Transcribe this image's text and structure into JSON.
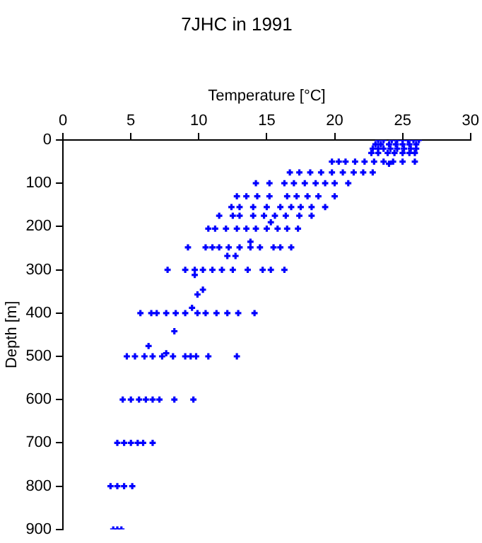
{
  "chart_data": {
    "type": "scatter",
    "title": "7JHC in 1991",
    "xlabel": "Temperature [°C]",
    "ylabel": "Depth [m]",
    "xlim": [
      0,
      30
    ],
    "xticks": [
      0,
      5,
      10,
      15,
      20,
      25,
      30
    ],
    "ylim": [
      900,
      0
    ],
    "yticks": [
      0,
      100,
      200,
      300,
      400,
      500,
      600,
      700,
      800,
      900
    ],
    "grid": false,
    "legend": false,
    "marker": "cross",
    "series": [
      {
        "color": "#0000ff",
        "x": [
          23.2,
          23.6,
          24.2,
          24.6,
          25.0,
          25.4,
          25.8,
          26.2,
          23.0,
          23.4,
          24.0,
          24.5,
          25.0,
          25.5,
          26.0,
          22.8,
          23.2,
          23.6,
          24.1,
          24.6,
          25.1,
          25.6,
          26.0,
          22.7,
          23.2,
          23.9,
          24.4,
          25.0,
          25.5,
          25.9,
          19.8,
          20.3,
          20.8,
          21.5,
          22.2,
          22.9,
          23.6,
          24.3,
          25.0,
          25.9,
          24.0,
          16.7,
          17.4,
          18.2,
          19.0,
          19.8,
          20.6,
          21.4,
          22.1,
          22.8,
          14.2,
          15.2,
          16.3,
          17.0,
          17.8,
          18.6,
          19.3,
          20.0,
          21.0,
          12.8,
          13.5,
          14.3,
          15.2,
          16.5,
          17.2,
          18.0,
          18.8,
          20.0,
          12.4,
          13.0,
          14.0,
          15.0,
          16.0,
          16.8,
          17.5,
          18.3,
          19.3,
          11.5,
          12.5,
          13.0,
          14.0,
          14.8,
          15.6,
          16.4,
          17.4,
          18.3,
          15.3,
          10.7,
          11.2,
          12.0,
          12.8,
          13.5,
          14.2,
          15.0,
          15.8,
          16.5,
          17.3,
          13.8,
          9.2,
          10.5,
          11.0,
          11.5,
          12.2,
          13.0,
          13.8,
          14.5,
          15.5,
          16.0,
          16.8,
          12.1,
          12.7,
          7.7,
          9.0,
          9.7,
          10.3,
          11.0,
          11.7,
          12.5,
          13.6,
          14.7,
          15.3,
          16.3,
          9.7,
          10.3,
          9.9,
          9.5,
          5.7,
          6.5,
          6.9,
          7.6,
          8.3,
          9.0,
          9.9,
          10.5,
          11.3,
          12.1,
          12.9,
          14.1,
          8.2,
          6.3,
          7.6,
          4.7,
          5.3,
          6.0,
          6.6,
          7.3,
          8.1,
          9.0,
          9.4,
          9.8,
          10.7,
          12.8,
          4.4,
          5.0,
          5.6,
          6.1,
          6.6,
          7.1,
          8.2,
          9.6,
          4.0,
          4.5,
          5.0,
          5.5,
          5.9,
          6.6,
          3.5,
          4.0,
          4.5,
          5.1,
          3.7,
          4.0,
          4.3
        ],
        "values": [
          0,
          0,
          0,
          0,
          0,
          0,
          0,
          0,
          10,
          10,
          10,
          10,
          10,
          10,
          10,
          20,
          20,
          20,
          20,
          20,
          20,
          20,
          20,
          30,
          30,
          30,
          30,
          30,
          30,
          30,
          50,
          50,
          50,
          50,
          50,
          50,
          50,
          50,
          50,
          50,
          55,
          75,
          75,
          75,
          75,
          75,
          75,
          75,
          75,
          75,
          100,
          100,
          100,
          100,
          100,
          100,
          100,
          100,
          100,
          130,
          130,
          130,
          130,
          130,
          130,
          130,
          130,
          130,
          155,
          155,
          155,
          155,
          155,
          155,
          155,
          155,
          155,
          175,
          175,
          175,
          175,
          175,
          175,
          175,
          175,
          175,
          190,
          205,
          205,
          205,
          205,
          205,
          205,
          205,
          205,
          205,
          205,
          235,
          248,
          248,
          248,
          248,
          248,
          248,
          248,
          248,
          248,
          248,
          248,
          268,
          268,
          300,
          300,
          300,
          300,
          300,
          300,
          300,
          300,
          300,
          300,
          300,
          312,
          346,
          357,
          388,
          400,
          400,
          400,
          400,
          400,
          400,
          400,
          400,
          400,
          400,
          400,
          400,
          442,
          476,
          493,
          500,
          500,
          500,
          500,
          500,
          500,
          500,
          500,
          500,
          500,
          500,
          600,
          600,
          600,
          600,
          600,
          600,
          600,
          600,
          700,
          700,
          700,
          700,
          700,
          700,
          800,
          800,
          800,
          800,
          900,
          900,
          900
        ]
      }
    ]
  }
}
